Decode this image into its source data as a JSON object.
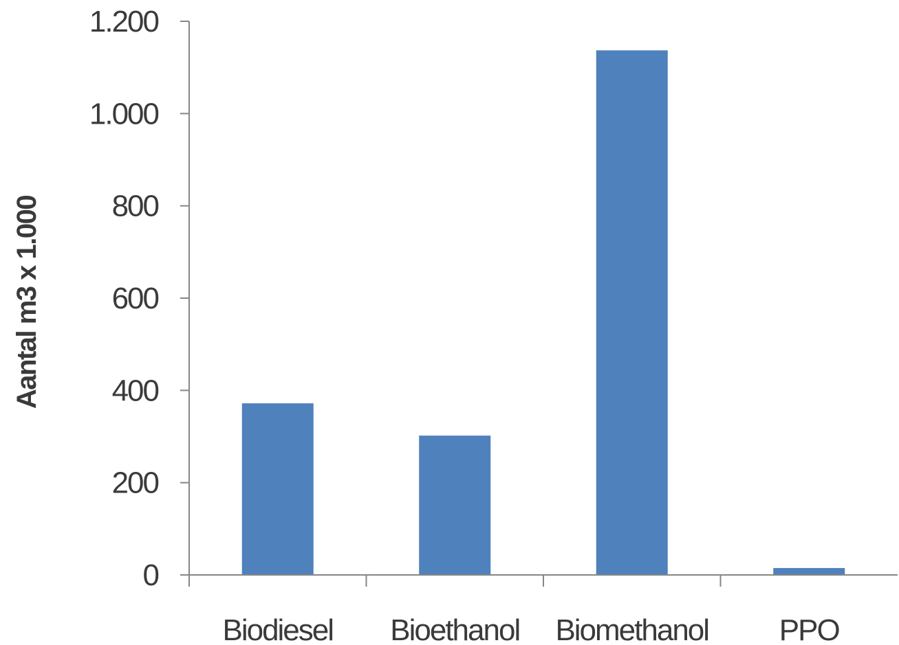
{
  "chart_data": {
    "type": "bar",
    "title": "",
    "xlabel": "",
    "ylabel": "Aantal m3   x 1.000",
    "categories": [
      "Biodiesel",
      "Bioethanol",
      "Biomethanol",
      "PPO"
    ],
    "values": [
      372,
      302,
      1137,
      15
    ],
    "ylim": [
      0,
      1200
    ],
    "yticks": [
      0,
      200,
      400,
      600,
      800,
      1000,
      1200
    ],
    "ytick_labels": [
      "0",
      "200",
      "400",
      "600",
      "800",
      "1.000",
      "1.200"
    ],
    "grid": false,
    "legend": "none",
    "bar_color": "#4f81bd",
    "axis_color": "#868686"
  }
}
